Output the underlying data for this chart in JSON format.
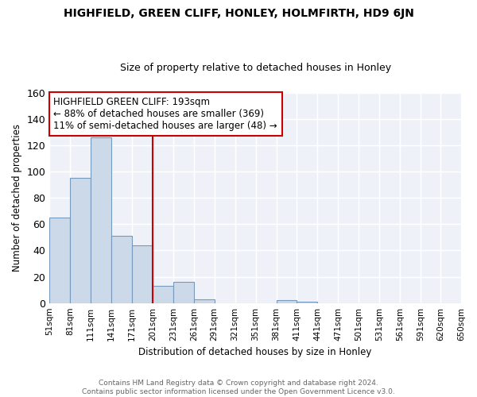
{
  "title": "HIGHFIELD, GREEN CLIFF, HONLEY, HOLMFIRTH, HD9 6JN",
  "subtitle": "Size of property relative to detached houses in Honley",
  "xlabel": "Distribution of detached houses by size in Honley",
  "ylabel": "Number of detached properties",
  "bar_color": "#ccd9e8",
  "bar_edge_color": "#7799bb",
  "background_color": "#eef2f8",
  "annotation_box_color": "#ffffff",
  "annotation_border_color": "#cc0000",
  "vline_color": "#cc0000",
  "vline_x": 201,
  "bin_edges": [
    51,
    81,
    111,
    141,
    171,
    201,
    231,
    261,
    291,
    321,
    351,
    381,
    411,
    441,
    471,
    501,
    531,
    561,
    591,
    620,
    650
  ],
  "bin_labels": [
    "51sqm",
    "81sqm",
    "111sqm",
    "141sqm",
    "171sqm",
    "201sqm",
    "231sqm",
    "261sqm",
    "291sqm",
    "321sqm",
    "351sqm",
    "381sqm",
    "411sqm",
    "441sqm",
    "471sqm",
    "501sqm",
    "531sqm",
    "561sqm",
    "591sqm",
    "620sqm",
    "650sqm"
  ],
  "counts": [
    65,
    95,
    126,
    51,
    44,
    13,
    16,
    3,
    0,
    0,
    0,
    2,
    1,
    0,
    0,
    0,
    0,
    0,
    0,
    0
  ],
  "annotation_title": "HIGHFIELD GREEN CLIFF: 193sqm",
  "annotation_line1": "← 88% of detached houses are smaller (369)",
  "annotation_line2": "11% of semi-detached houses are larger (48) →",
  "ylim": [
    0,
    160
  ],
  "yticks": [
    0,
    20,
    40,
    60,
    80,
    100,
    120,
    140,
    160
  ],
  "footer_line1": "Contains HM Land Registry data © Crown copyright and database right 2024.",
  "footer_line2": "Contains public sector information licensed under the Open Government Licence v3.0."
}
